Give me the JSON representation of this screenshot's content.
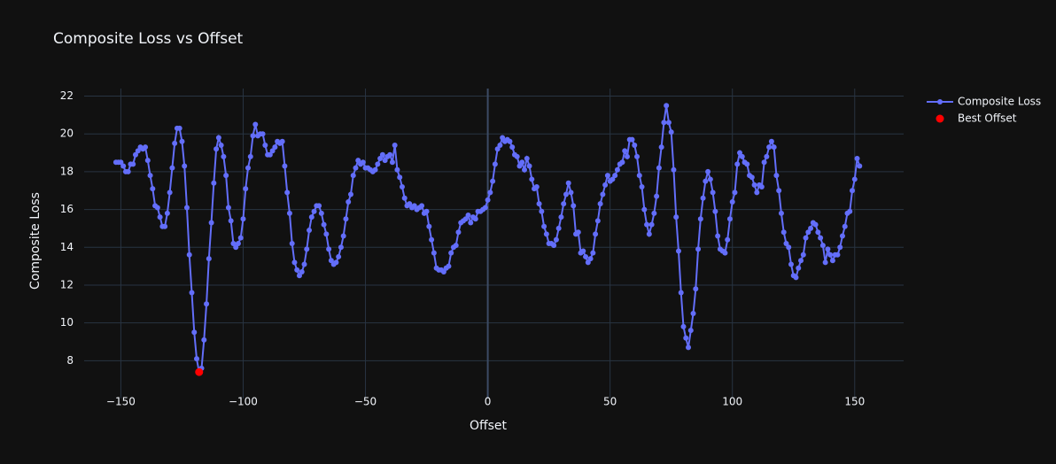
{
  "chart_data": {
    "type": "line",
    "title": "Composite Loss vs Offset",
    "x_label": "Offset",
    "y_label": "Composite Loss",
    "xlim": [
      -165,
      170
    ],
    "ylim": [
      6.0,
      22.4
    ],
    "xticks": [
      {
        "value": -150,
        "label": "−150"
      },
      {
        "value": -100,
        "label": "−100"
      },
      {
        "value": -50,
        "label": "−50"
      },
      0,
      50,
      100,
      150
    ],
    "yticks": [
      8,
      10,
      12,
      14,
      16,
      18,
      20,
      22
    ],
    "grid": true,
    "legend": "top-right",
    "series": [
      {
        "name": "Composite Loss",
        "color": "#636efa",
        "mode": "lines+markers",
        "x": [
          -152,
          -151,
          -150,
          -149,
          -148,
          -147,
          -146,
          -145,
          -144,
          -143,
          -142,
          -141,
          -140,
          -139,
          -138,
          -137,
          -136,
          -135,
          -134,
          -133,
          -132,
          -131,
          -130,
          -129,
          -128,
          -127,
          -126,
          -125,
          -124,
          -123,
          -122,
          -121,
          -120,
          -119,
          -118,
          -117,
          -116,
          -115,
          -114,
          -113,
          -112,
          -111,
          -110,
          -109,
          -108,
          -107,
          -106,
          -105,
          -104,
          -103,
          -102,
          -101,
          -100,
          -99,
          -98,
          -97,
          -96,
          -95,
          -94,
          -93,
          -92,
          -91,
          -90,
          -89,
          -88,
          -87,
          -86,
          -85,
          -84,
          -83,
          -82,
          -81,
          -80,
          -79,
          -78,
          -77,
          -76,
          -75,
          -74,
          -73,
          -72,
          -71,
          -70,
          -69,
          -68,
          -67,
          -66,
          -65,
          -64,
          -63,
          -62,
          -61,
          -60,
          -59,
          -58,
          -57,
          -56,
          -55,
          -54,
          -53,
          -52,
          -51,
          -50,
          -49,
          -48,
          -47,
          -46,
          -45,
          -44,
          -43,
          -42,
          -41,
          -40,
          -39,
          -38,
          -37,
          -36,
          -35,
          -34,
          -33,
          -32,
          -31,
          -30,
          -29,
          -28,
          -27,
          -26,
          -25,
          -24,
          -23,
          -22,
          -21,
          -20,
          -19,
          -18,
          -17,
          -16,
          -15,
          -14,
          -13,
          -12,
          -11,
          -10,
          -9,
          -8,
          -7,
          -6,
          -5,
          -4,
          -3,
          -2,
          -1,
          0,
          1,
          2,
          3,
          4,
          5,
          6,
          7,
          8,
          9,
          10,
          11,
          12,
          13,
          14,
          15,
          16,
          17,
          18,
          19,
          20,
          21,
          22,
          23,
          24,
          25,
          26,
          27,
          28,
          29,
          30,
          31,
          32,
          33,
          34,
          35,
          36,
          37,
          38,
          39,
          40,
          41,
          42,
          43,
          44,
          45,
          46,
          47,
          48,
          49,
          50,
          51,
          52,
          53,
          54,
          55,
          56,
          57,
          58,
          59,
          60,
          61,
          62,
          63,
          64,
          65,
          66,
          67,
          68,
          69,
          70,
          71,
          72,
          73,
          74,
          75,
          76,
          77,
          78,
          79,
          80,
          81,
          82,
          83,
          84,
          85,
          86,
          87,
          88,
          89,
          90,
          91,
          92,
          93,
          94,
          95,
          96,
          97,
          98,
          99,
          100,
          101,
          102,
          103,
          104,
          105,
          106,
          107,
          108,
          109,
          110,
          111,
          112,
          113,
          114,
          115,
          116,
          117,
          118,
          119,
          120,
          121,
          122,
          123,
          124,
          125,
          126,
          127,
          128,
          129,
          130,
          131,
          132,
          133,
          134,
          135,
          136,
          137,
          138,
          139,
          140,
          141,
          142,
          143,
          144,
          145,
          146,
          147,
          148,
          149,
          150,
          151,
          152
        ],
        "values": [
          18.5,
          18.5,
          18.5,
          18.3,
          18.0,
          18.0,
          18.4,
          18.4,
          18.9,
          19.1,
          19.3,
          19.2,
          19.3,
          18.6,
          17.8,
          17.1,
          16.2,
          16.1,
          15.6,
          15.1,
          15.1,
          15.8,
          16.9,
          18.2,
          19.5,
          20.3,
          20.3,
          19.6,
          18.3,
          16.1,
          13.6,
          11.6,
          9.5,
          8.1,
          7.4,
          7.6,
          9.1,
          11.0,
          13.4,
          15.3,
          17.4,
          19.2,
          19.8,
          19.4,
          18.8,
          17.8,
          16.1,
          15.4,
          14.2,
          14.0,
          14.2,
          14.5,
          15.5,
          17.1,
          18.2,
          18.8,
          19.9,
          20.5,
          19.9,
          20.0,
          20.0,
          19.4,
          18.9,
          18.9,
          19.1,
          19.3,
          19.6,
          19.5,
          19.6,
          18.3,
          16.9,
          15.8,
          14.2,
          13.2,
          12.8,
          12.5,
          12.7,
          13.1,
          13.9,
          14.9,
          15.6,
          15.9,
          16.2,
          16.2,
          15.8,
          15.2,
          14.7,
          13.9,
          13.3,
          13.1,
          13.2,
          13.5,
          14.0,
          14.6,
          15.5,
          16.4,
          16.8,
          17.8,
          18.2,
          18.6,
          18.4,
          18.5,
          18.2,
          18.2,
          18.1,
          18.0,
          18.1,
          18.4,
          18.7,
          18.9,
          18.6,
          18.8,
          18.9,
          18.5,
          19.4,
          18.1,
          17.7,
          17.2,
          16.6,
          16.2,
          16.3,
          16.1,
          16.2,
          16.0,
          16.1,
          16.2,
          15.8,
          15.9,
          15.1,
          14.4,
          13.7,
          12.9,
          12.8,
          12.8,
          12.7,
          12.9,
          13.0,
          13.7,
          14.0,
          14.1,
          14.8,
          15.3,
          15.4,
          15.5,
          15.7,
          15.3,
          15.6,
          15.5,
          15.9,
          15.9,
          16.0,
          16.1,
          16.5,
          16.9,
          17.5,
          18.4,
          19.2,
          19.4,
          19.8,
          19.6,
          19.7,
          19.6,
          19.3,
          18.9,
          18.8,
          18.3,
          18.5,
          18.1,
          18.7,
          18.3,
          17.6,
          17.1,
          17.2,
          16.3,
          15.9,
          15.1,
          14.7,
          14.2,
          14.2,
          14.1,
          14.4,
          15.0,
          15.6,
          16.3,
          16.8,
          17.4,
          16.9,
          16.2,
          14.7,
          14.8,
          13.7,
          13.8,
          13.5,
          13.2,
          13.4,
          13.7,
          14.7,
          15.4,
          16.3,
          16.8,
          17.3,
          17.8,
          17.5,
          17.6,
          17.8,
          18.1,
          18.4,
          18.5,
          19.1,
          18.8,
          19.7,
          19.7,
          19.4,
          18.8,
          17.8,
          17.2,
          16.0,
          15.2,
          14.7,
          15.2,
          15.8,
          16.7,
          18.2,
          19.3,
          20.6,
          21.5,
          20.6,
          20.1,
          18.1,
          15.6,
          13.8,
          11.6,
          9.8,
          9.2,
          8.7,
          9.6,
          10.5,
          11.8,
          13.9,
          15.5,
          16.6,
          17.5,
          18.0,
          17.6,
          16.9,
          15.9,
          14.6,
          13.9,
          13.8,
          13.7,
          14.4,
          15.5,
          16.4,
          16.9,
          18.4,
          19.0,
          18.8,
          18.5,
          18.4,
          17.8,
          17.7,
          17.3,
          16.9,
          17.3,
          17.2,
          18.5,
          18.8,
          19.3,
          19.6,
          19.3,
          17.8,
          17.0,
          15.8,
          14.8,
          14.2,
          14.0,
          13.1,
          12.5,
          12.4,
          12.9,
          13.3,
          13.6,
          14.5,
          14.8,
          15.0,
          15.3,
          15.2,
          14.8,
          14.5,
          14.1,
          13.2,
          13.9,
          13.6,
          13.3,
          13.6,
          13.6,
          14.0,
          14.6,
          15.1,
          15.8,
          15.9,
          17.0,
          17.6,
          18.7,
          18.3
        ]
      },
      {
        "name": "Best Offset",
        "color": "#ff0000",
        "mode": "markers",
        "x": [
          -118
        ],
        "values": [
          7.4
        ]
      }
    ]
  }
}
